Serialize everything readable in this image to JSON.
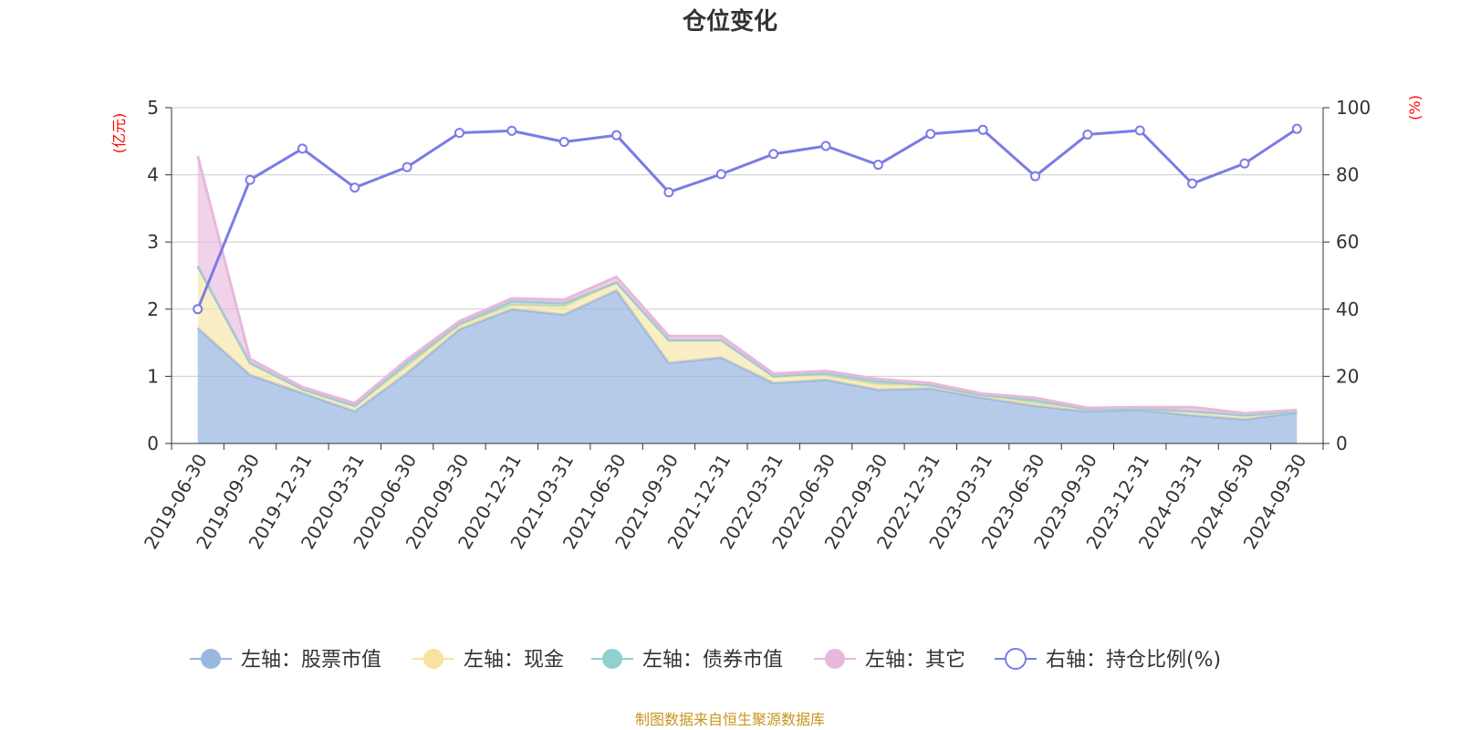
{
  "chart_data": {
    "type": "area",
    "title": "仓位变化",
    "left_axis_unit": "(亿元)",
    "right_axis_unit": "(%)",
    "left_ylim": [
      0,
      5
    ],
    "left_ticks": [
      "0",
      "1",
      "2",
      "3",
      "4",
      "5"
    ],
    "right_ylim": [
      0,
      100
    ],
    "right_ticks": [
      "0",
      "20",
      "40",
      "60",
      "80",
      "100"
    ],
    "categories": [
      "2019-06-30",
      "2019-09-30",
      "2019-12-31",
      "2020-03-31",
      "2020-06-30",
      "2020-09-30",
      "2020-12-31",
      "2021-03-31",
      "2021-06-30",
      "2021-09-30",
      "2021-12-31",
      "2022-03-31",
      "2022-06-30",
      "2022-09-30",
      "2022-12-31",
      "2023-03-31",
      "2023-06-30",
      "2023-09-30",
      "2023-12-31",
      "2024-03-31",
      "2024-06-30",
      "2024-09-30"
    ],
    "series": [
      {
        "name": "左轴：股票市值",
        "axis": "left",
        "type": "area",
        "color": "#9ab7e0",
        "values": [
          1.72,
          1.02,
          0.75,
          0.48,
          1.05,
          1.7,
          2.0,
          1.92,
          2.28,
          1.2,
          1.28,
          0.9,
          0.95,
          0.8,
          0.82,
          0.68,
          0.56,
          0.48,
          0.5,
          0.42,
          0.36,
          0.46
        ]
      },
      {
        "name": "左轴：现金",
        "axis": "left",
        "type": "area",
        "color": "#f7e3a0",
        "values": [
          0.92,
          0.18,
          0.06,
          0.08,
          0.1,
          0.06,
          0.06,
          0.12,
          0.12,
          0.34,
          0.26,
          0.1,
          0.06,
          0.08,
          0.05,
          0.04,
          0.04,
          0.03,
          0.02,
          0.06,
          0.06,
          0.02
        ]
      },
      {
        "name": "左轴：债券市值",
        "axis": "left",
        "type": "area",
        "color": "#8fd0d0",
        "values": [
          0,
          0,
          0,
          0,
          0.06,
          0.02,
          0.06,
          0.05,
          0,
          0,
          0,
          0,
          0.04,
          0.05,
          0,
          0,
          0.05,
          0,
          0,
          0,
          0,
          0
        ]
      },
      {
        "name": "左轴：其它",
        "axis": "left",
        "type": "area",
        "color": "#e8b8dc",
        "values": [
          1.64,
          0.06,
          0.03,
          0.04,
          0.04,
          0.04,
          0.04,
          0.05,
          0.08,
          0.06,
          0.06,
          0.04,
          0.03,
          0.03,
          0.03,
          0.02,
          0.03,
          0.02,
          0.02,
          0.06,
          0.03,
          0.02
        ]
      },
      {
        "name": "右轴：持仓比例(%)",
        "axis": "right",
        "type": "line",
        "color": "#7b7be8",
        "values": [
          40.0,
          78.5,
          87.8,
          76.2,
          82.3,
          92.5,
          93.1,
          89.8,
          91.8,
          74.8,
          80.2,
          86.2,
          88.6,
          83.0,
          92.2,
          93.4,
          79.6,
          92.0,
          93.2,
          77.4,
          83.4,
          93.7
        ]
      }
    ],
    "legend_position": "bottom",
    "source_note": "制图数据来自恒生聚源数据库"
  }
}
